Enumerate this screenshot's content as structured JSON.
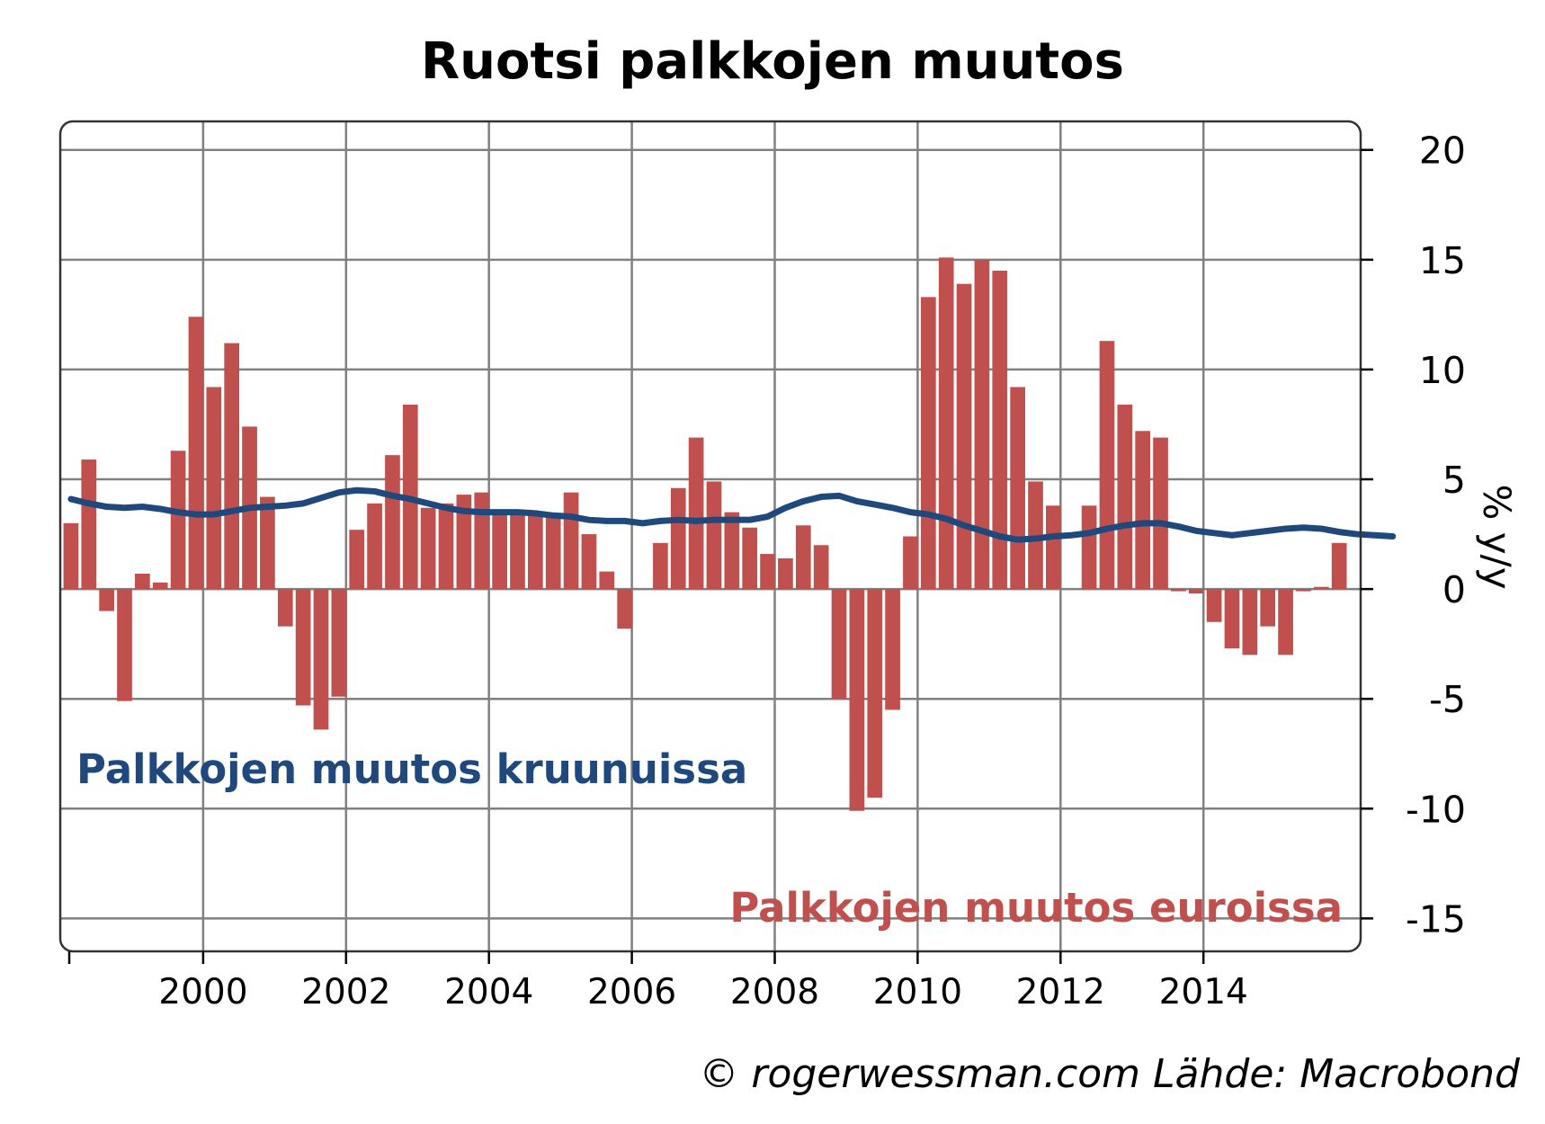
{
  "chart_data": {
    "type": "bar",
    "title": "Ruotsi palkkojen muutos",
    "ylabel": "% y/y",
    "ylim": [
      -16.5,
      21.3
    ],
    "yticks": [
      20,
      15,
      10,
      5,
      0,
      -5,
      -10,
      -15
    ],
    "ytick_labels": [
      "20",
      "15",
      "10",
      "5",
      "0",
      "-5",
      "-10",
      "-15"
    ],
    "xlim": [
      1998.0,
      2016.2
    ],
    "xticks": [
      2000,
      2002,
      2004,
      2006,
      2008,
      2010,
      2012,
      2014
    ],
    "xtick_labels": [
      "2000",
      "2002",
      "2004",
      "2006",
      "2008",
      "2010",
      "2012",
      "2014"
    ],
    "grid": true,
    "y_axis_side": "right",
    "bar_start": 1998.15,
    "bar_step": 0.25,
    "series": [
      {
        "name": "Palkkojen muutos euroissa",
        "type": "bar",
        "color": "#c0504d",
        "values": [
          3.0,
          5.9,
          -1.0,
          -5.1,
          0.7,
          0.3,
          6.3,
          12.4,
          9.2,
          11.2,
          7.4,
          4.2,
          -1.7,
          -5.3,
          -6.4,
          -4.9,
          2.7,
          3.9,
          6.1,
          8.4,
          3.7,
          3.9,
          4.3,
          4.4,
          3.6,
          3.5,
          3.4,
          3.3,
          4.4,
          2.5,
          0.8,
          -1.8,
          0.0,
          2.1,
          4.6,
          6.9,
          4.9,
          3.5,
          2.8,
          1.6,
          1.4,
          2.9,
          2.0,
          -5.0,
          -10.1,
          -9.5,
          -5.5,
          2.4,
          13.3,
          15.1,
          13.9,
          15.0,
          14.5,
          9.2,
          4.9,
          3.8,
          0.0,
          3.8,
          11.3,
          8.4,
          7.2,
          6.9,
          -0.1,
          -0.2,
          -1.5,
          -2.7,
          -3.0,
          -1.7,
          -3.0,
          -0.1,
          0.1,
          2.1
        ]
      },
      {
        "name": "Palkkojen muutos kruunuissa",
        "type": "line",
        "color": "#1f497d",
        "values": [
          4.1,
          3.9,
          3.75,
          3.7,
          3.75,
          3.65,
          3.5,
          3.4,
          3.4,
          3.55,
          3.7,
          3.75,
          3.8,
          3.9,
          4.15,
          4.4,
          4.5,
          4.45,
          4.25,
          4.1,
          3.9,
          3.7,
          3.55,
          3.5,
          3.5,
          3.5,
          3.45,
          3.35,
          3.3,
          3.15,
          3.1,
          3.1,
          3.0,
          3.1,
          3.15,
          3.1,
          3.15,
          3.15,
          3.15,
          3.3,
          3.7,
          4.0,
          4.2,
          4.25,
          4.0,
          3.85,
          3.7,
          3.5,
          3.4,
          3.2,
          2.9,
          2.65,
          2.4,
          2.25,
          2.3,
          2.4,
          2.45,
          2.55,
          2.75,
          2.9,
          3.0,
          3.0,
          2.85,
          2.65,
          2.55,
          2.45,
          2.55,
          2.65,
          2.75,
          2.8,
          2.75,
          2.6,
          2.5,
          2.45,
          2.4
        ]
      }
    ],
    "annotations": [
      {
        "text": "Palkkojen muutos kruunuissa",
        "color": "#1f497d"
      },
      {
        "text": "Palkkojen muutos euroissa",
        "color": "#c0504d"
      }
    ],
    "source": "© rogerwessman.com Lähde: Macrobond"
  }
}
